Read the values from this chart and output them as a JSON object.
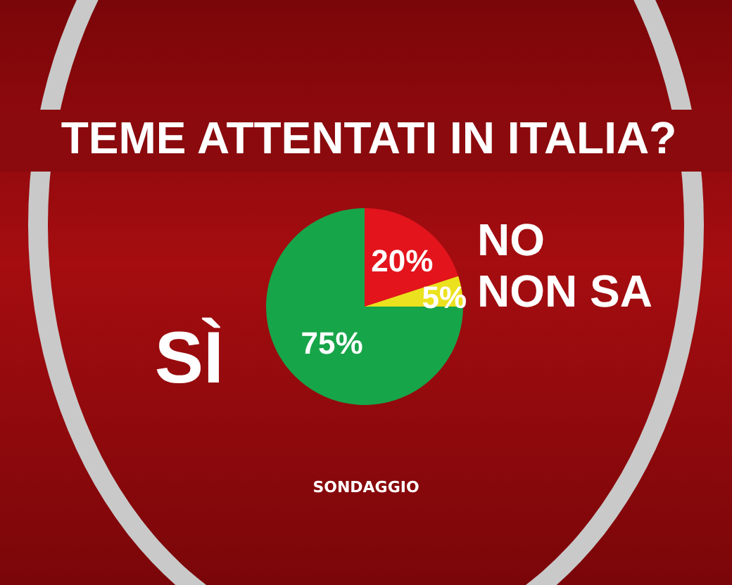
{
  "chart_data": {
    "type": "pie",
    "title": "TEME ATTENTATI IN ITALIA?",
    "categories": [
      "NO",
      "NON SA",
      "SÌ"
    ],
    "values": [
      20,
      5,
      75
    ],
    "colors": [
      "#e3141c",
      "#ece11e",
      "#17a54a"
    ],
    "value_labels": [
      "20%",
      "5%",
      "75%"
    ],
    "legend": false,
    "annotations": [
      "SONDAGGIO"
    ]
  }
}
